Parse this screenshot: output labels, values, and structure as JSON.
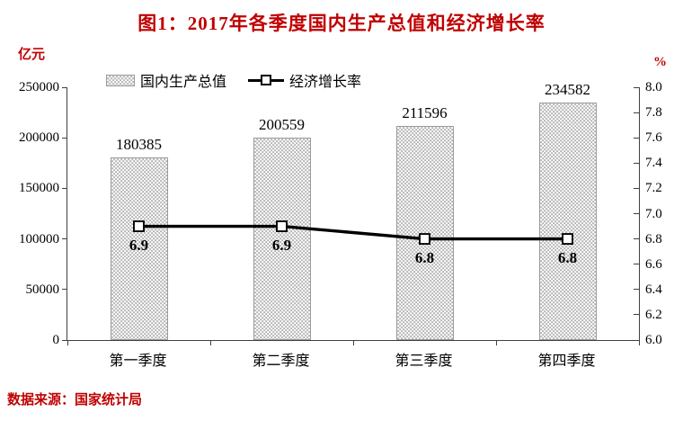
{
  "colors": {
    "accent_red": "#c00000",
    "bar_fill": "#ababab",
    "bar_dot": "#ffffff",
    "line": "#000000",
    "axis": "#404040",
    "text": "#000000"
  },
  "chart_data": {
    "type": "bar",
    "subtype": "combo-bar-line",
    "title": "图1：2017年各季度国内生产总值和经济增长率",
    "categories": [
      "第一季度",
      "第二季度",
      "第三季度",
      "第四季度"
    ],
    "series": [
      {
        "name": "国内生产总值",
        "type": "bar",
        "axis": "left",
        "unit": "亿元",
        "values": [
          180385,
          200559,
          211596,
          234582
        ]
      },
      {
        "name": "经济增长率",
        "type": "line",
        "axis": "right",
        "unit": "%",
        "values": [
          6.9,
          6.9,
          6.8,
          6.8
        ]
      }
    ],
    "left_axis": {
      "label": "亿元",
      "min": 0,
      "max": 250000,
      "step": 50000
    },
    "right_axis": {
      "label": "%",
      "min": 6.0,
      "max": 8.0,
      "step": 0.2
    },
    "grid": false,
    "legend_position": "top",
    "source": "数据来源：国家统计局"
  }
}
